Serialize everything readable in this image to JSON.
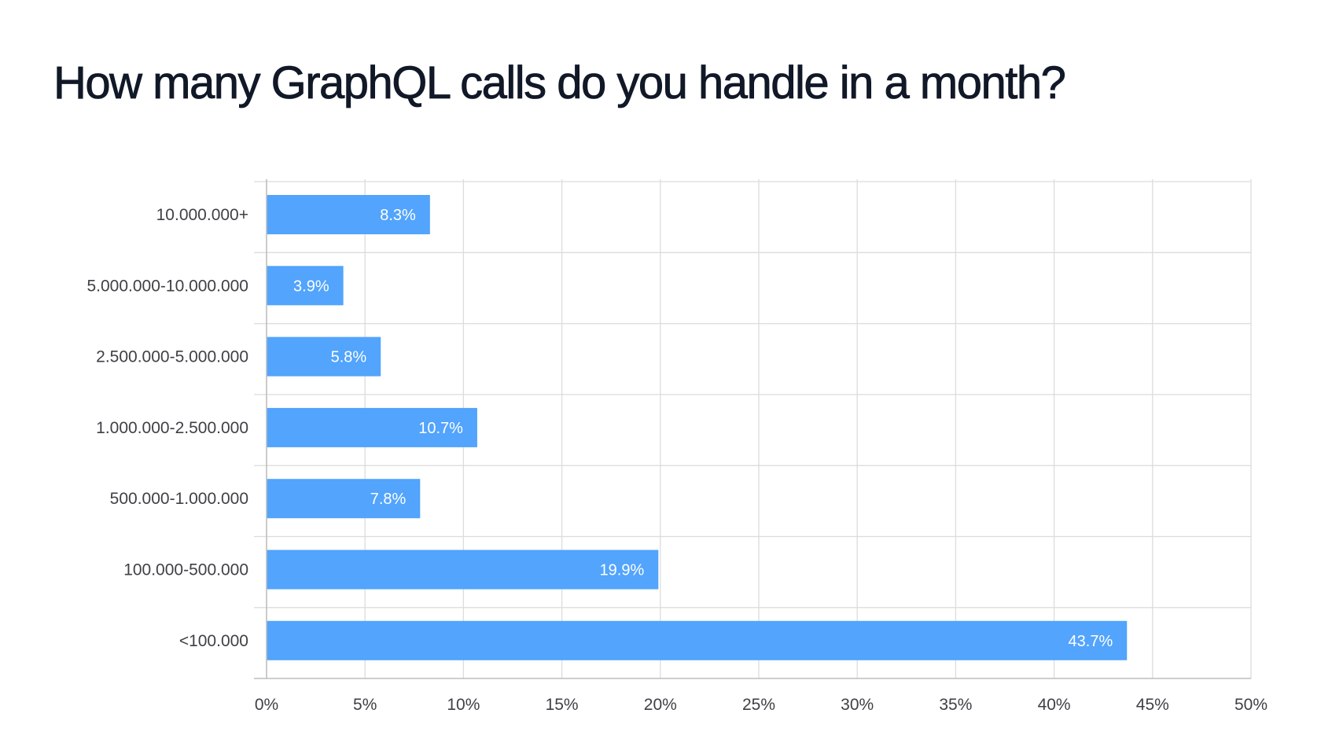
{
  "page": {
    "title": "How many GraphQL calls do you handle in a month?"
  },
  "chart_data": {
    "type": "bar",
    "orientation": "horizontal",
    "title": "How many GraphQL calls do you handle in a month?",
    "xlabel": "",
    "ylabel": "",
    "categories": [
      "10.000.000+",
      "5.000.000-10.000.000",
      "2.500.000-5.000.000",
      "1.000.000-2.500.000",
      "500.000-1.000.000",
      "100.000-500.000",
      "<100.000"
    ],
    "values": [
      8.3,
      3.9,
      5.8,
      10.7,
      7.8,
      19.9,
      43.7
    ],
    "value_labels": [
      "8.3%",
      "3.9%",
      "5.8%",
      "10.7%",
      "7.8%",
      "19.9%",
      "43.7%"
    ],
    "xlim": [
      0,
      50
    ],
    "x_ticks": [
      0,
      5,
      10,
      15,
      20,
      25,
      30,
      35,
      40,
      45,
      50
    ],
    "x_tick_labels": [
      "0%",
      "5%",
      "10%",
      "15%",
      "20%",
      "25%",
      "30%",
      "35%",
      "40%",
      "45%",
      "50%"
    ],
    "grid": true,
    "legend": "none",
    "bar_color": "#52a4fc",
    "grid_color": "#dcdcdc",
    "axis_color": "#bdbdbd"
  }
}
